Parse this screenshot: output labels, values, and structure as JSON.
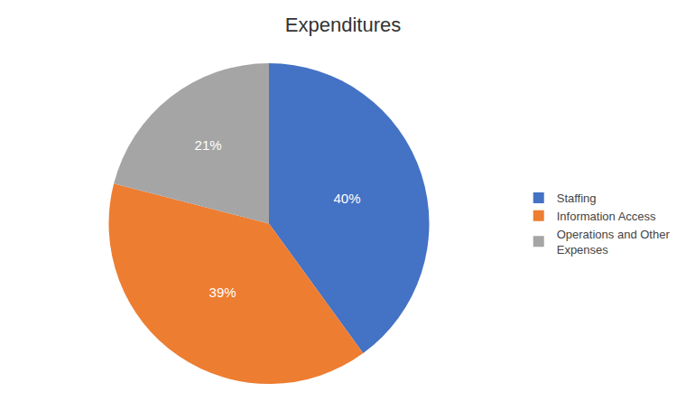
{
  "chart_data": {
    "type": "pie",
    "title": "Expenditures",
    "categories": [
      "Staffing",
      "Information Access",
      "Operations and Other\nExpenses"
    ],
    "values": [
      40,
      39,
      21
    ],
    "value_labels": [
      "40%",
      "39%",
      "21%"
    ],
    "colors": [
      "#4472C4",
      "#ED7D31",
      "#A5A5A5"
    ],
    "data_labels": true,
    "legend": "right"
  }
}
